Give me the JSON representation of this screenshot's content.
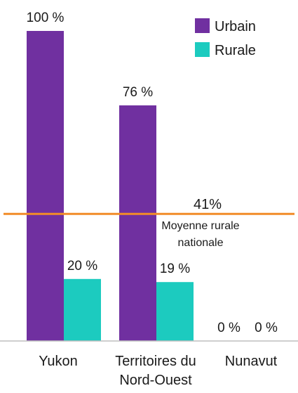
{
  "chart_data": {
    "type": "bar",
    "categories": [
      "Yukon",
      "Territoires du Nord-Ouest",
      "Nunavut"
    ],
    "category_lines": [
      [
        "Yukon"
      ],
      [
        "Territoires du",
        "Nord-Ouest"
      ],
      [
        "Nunavut"
      ]
    ],
    "series": [
      {
        "name": "Urbain",
        "color": "#7030a0",
        "values": [
          100,
          76,
          0
        ],
        "labels": [
          "100 %",
          "76 %",
          "0 %"
        ]
      },
      {
        "name": "Rurale",
        "color": "#1ccbbf",
        "values": [
          20,
          19,
          0
        ],
        "labels": [
          "20 %",
          "19 %",
          "0 %"
        ]
      }
    ],
    "ylim": [
      0,
      100
    ],
    "grid": false,
    "legend_position": "top-right",
    "reference_line": {
      "value": 41,
      "color": "#f28c28",
      "value_label": "41%",
      "label_lines": [
        "Moyenne rurale",
        "nationale"
      ]
    }
  }
}
